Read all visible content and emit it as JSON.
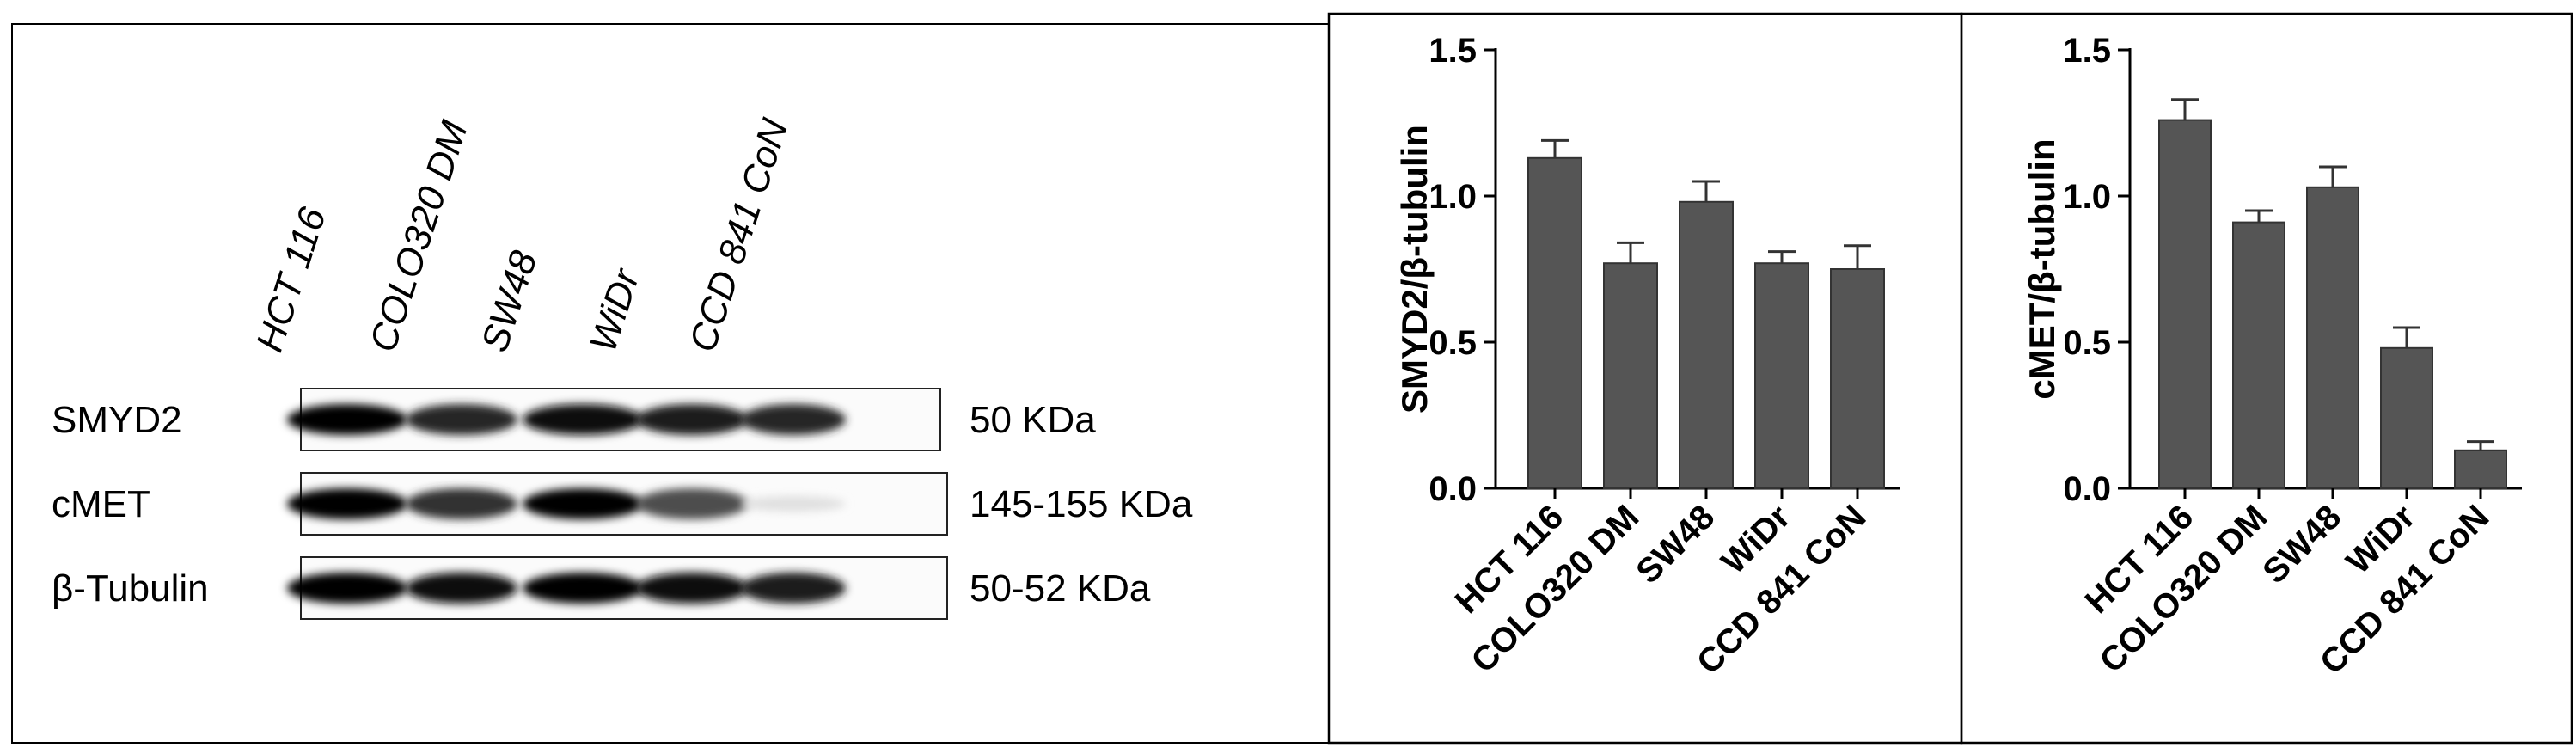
{
  "blot": {
    "lanes": [
      "HCT 116",
      "COLO320 DM",
      "SW48",
      "WiDr",
      "CCD 841 CoN"
    ],
    "rows": [
      {
        "protein": "SMYD2",
        "size": "50 KDa",
        "intensity": [
          1.0,
          0.85,
          0.95,
          0.9,
          0.85
        ]
      },
      {
        "protein": "cMET",
        "size": "145-155 KDa",
        "intensity": [
          1.0,
          0.8,
          1.0,
          0.7,
          0.12
        ]
      },
      {
        "protein": "β-Tubulin",
        "size": "50-52 KDa",
        "intensity": [
          1.0,
          0.95,
          1.0,
          0.95,
          0.9
        ]
      }
    ]
  },
  "chart_data": [
    {
      "type": "bar",
      "title": "",
      "xlabel": "",
      "ylabel": "SMYD2/β-tubulin",
      "categories": [
        "HCT 116",
        "COLO320 DM",
        "SW48",
        "WiDr",
        "CCD 841 CoN"
      ],
      "values": [
        1.13,
        0.77,
        0.98,
        0.77,
        0.75
      ],
      "errors": [
        0.06,
        0.07,
        0.07,
        0.04,
        0.08
      ],
      "ylim": [
        0,
        1.5
      ],
      "yticks": [
        "0.0",
        "0.5",
        "1.0",
        "1.5"
      ],
      "color": "#555555"
    },
    {
      "type": "bar",
      "title": "",
      "xlabel": "",
      "ylabel": "cMET/β-tubulin",
      "categories": [
        "HCT 116",
        "COLO320 DM",
        "SW48",
        "WiDr",
        "CCD 841 CoN"
      ],
      "values": [
        1.26,
        0.91,
        1.03,
        0.48,
        0.13
      ],
      "errors": [
        0.07,
        0.04,
        0.07,
        0.07,
        0.03
      ],
      "ylim": [
        0,
        1.5
      ],
      "yticks": [
        "0.0",
        "0.5",
        "1.0",
        "1.5"
      ],
      "color": "#555555"
    }
  ]
}
